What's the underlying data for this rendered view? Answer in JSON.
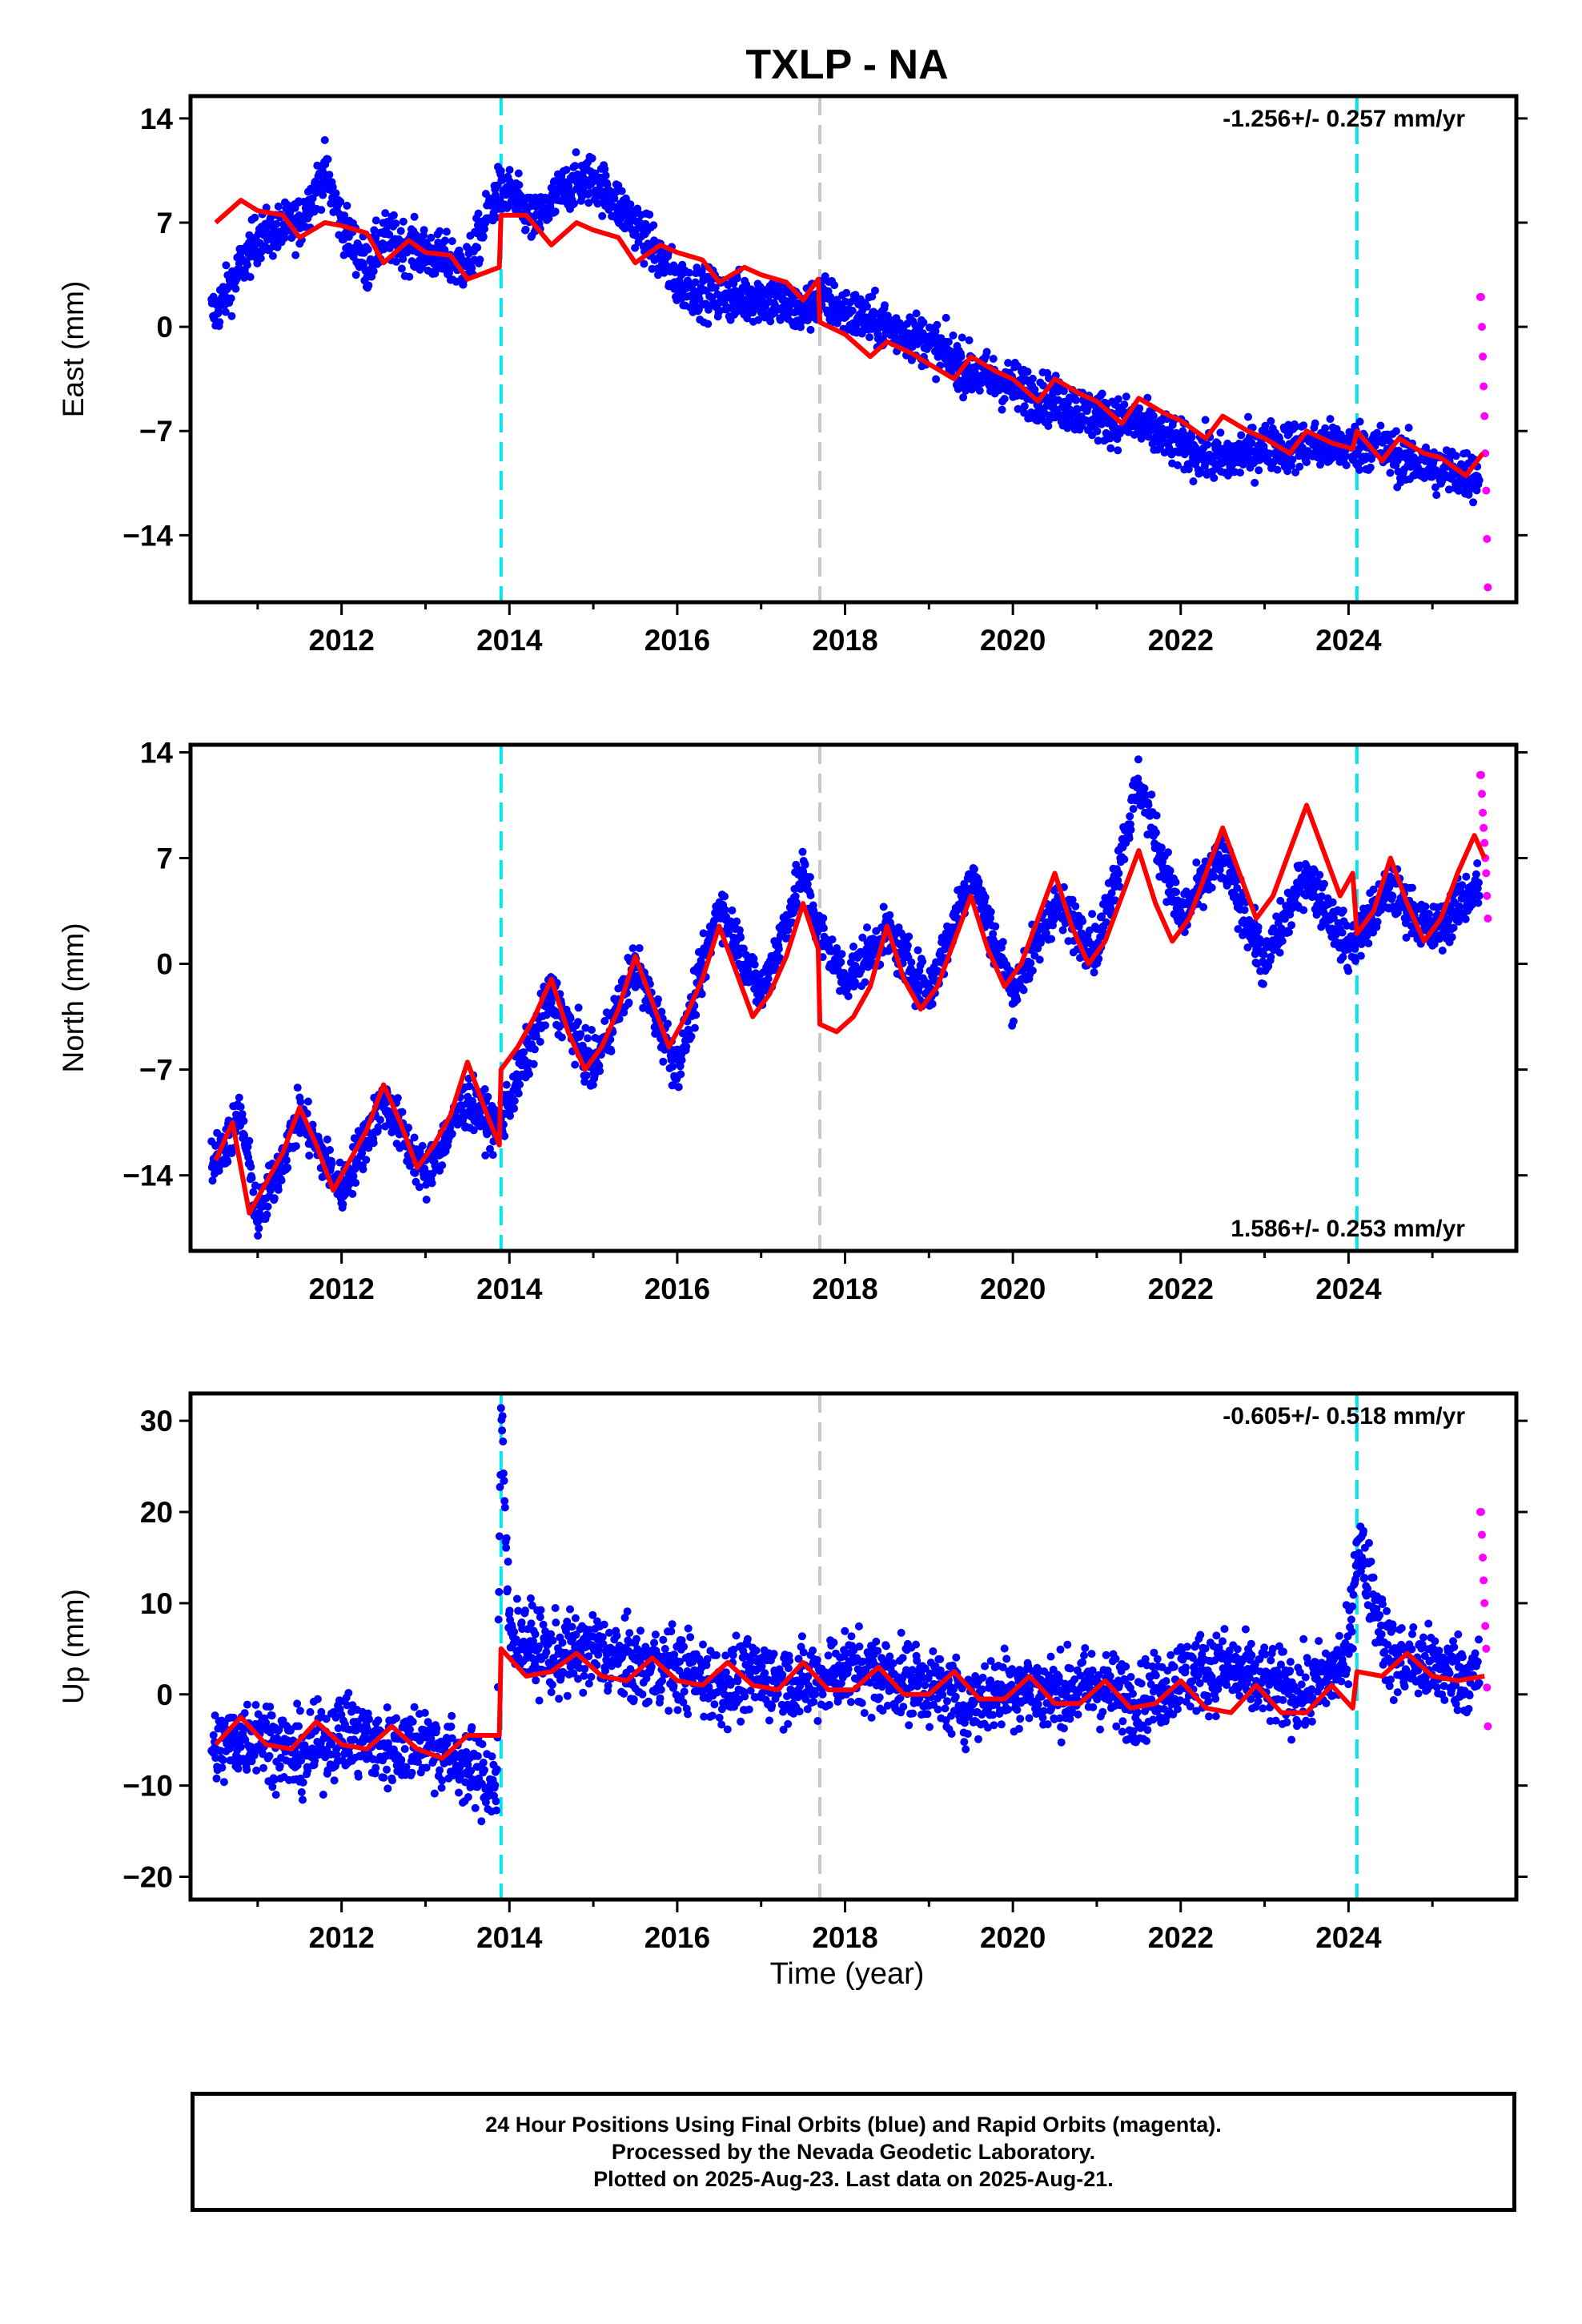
{
  "title": "TXLP - NA",
  "xlabel": "Time (year)",
  "x_ticks": [
    2012,
    2014,
    2016,
    2018,
    2020,
    2022,
    2024
  ],
  "colors": {
    "final_orbits": "#0000ff",
    "rapid_orbits": "#ff00ff",
    "model_fit": "#ff0000",
    "antenna_change": "#00e5ee",
    "event_line": "#c8c8c8"
  },
  "vertical_lines": {
    "antenna_change": [
      2013.9,
      2024.1
    ],
    "event": [
      2017.7
    ]
  },
  "caption": {
    "line1": "24 Hour Positions Using Final Orbits (blue) and Rapid Orbits (magenta).",
    "line2": "Processed by the Nevada Geodetic Laboratory.",
    "line3": "Plotted on 2025-Aug-23. Last data on 2025-Aug-21."
  },
  "chart_data": [
    {
      "type": "scatter",
      "component": "east",
      "ylabel": "East (mm)",
      "rate_label": "-1.256+/- 0.257 mm/yr",
      "xlim": [
        2010.2,
        2026.0
      ],
      "ylim": [
        -18.5,
        15.5
      ],
      "y_ticks": [
        14,
        7,
        0,
        -7,
        -14
      ],
      "y_tick_labels": [
        "14",
        "7",
        "0",
        "−7",
        "−14"
      ],
      "series": [
        {
          "role": "final_orbits",
          "x": [
            2010.5,
            2011.0,
            2011.5,
            2011.8,
            2012.0,
            2012.3,
            2012.5,
            2013.0,
            2013.5,
            2013.85,
            2014.0,
            2014.3,
            2014.7,
            2015.0,
            2015.5,
            2016.0,
            2016.5,
            2017.0,
            2017.5,
            2017.7,
            2018.0,
            2018.5,
            2019.0,
            2019.5,
            2020.0,
            2020.5,
            2021.0,
            2021.5,
            2022.0,
            2022.5,
            2023.0,
            2023.5,
            2024.0,
            2024.3,
            2024.7,
            2025.0,
            2025.5
          ],
          "values": [
            1.0,
            6.0,
            7.0,
            10.5,
            7.0,
            4.0,
            6.0,
            5.0,
            4.0,
            9.0,
            9.0,
            7.0,
            9.5,
            10.0,
            7.0,
            3.0,
            2.0,
            2.0,
            1.0,
            2.0,
            1.0,
            0.0,
            -1.0,
            -3.0,
            -4.0,
            -5.0,
            -6.0,
            -6.5,
            -8.0,
            -9.0,
            -8.0,
            -8.0,
            -8.0,
            -8.0,
            -9.0,
            -9.5,
            -10.0
          ]
        },
        {
          "role": "rapid_orbits",
          "x": [
            2025.58,
            2025.6,
            2025.62,
            2025.64,
            2025.66
          ],
          "values": [
            2.0,
            -2.0,
            -6.0,
            -11.0,
            -17.5
          ]
        }
      ],
      "fit": {
        "x": [
          2010.5,
          2010.8,
          2011.0,
          2011.3,
          2011.5,
          2011.8,
          2012.0,
          2012.3,
          2012.5,
          2012.8,
          2013.0,
          2013.3,
          2013.5,
          2013.88,
          2013.9,
          2014.2,
          2014.5,
          2014.8,
          2015.0,
          2015.3,
          2015.5,
          2015.8,
          2016.0,
          2016.3,
          2016.5,
          2016.8,
          2017.0,
          2017.3,
          2017.5,
          2017.68,
          2017.7,
          2018.0,
          2018.3,
          2018.5,
          2018.8,
          2019.0,
          2019.3,
          2019.5,
          2019.8,
          2020.0,
          2020.3,
          2020.5,
          2020.8,
          2021.0,
          2021.3,
          2021.5,
          2021.8,
          2022.0,
          2022.3,
          2022.5,
          2022.8,
          2023.0,
          2023.3,
          2023.5,
          2023.8,
          2024.05,
          2024.1,
          2024.4,
          2024.6,
          2024.9,
          2025.1,
          2025.4,
          2025.6
        ],
        "values": [
          7.0,
          8.5,
          7.8,
          7.5,
          6.0,
          7.0,
          6.8,
          6.3,
          4.3,
          5.8,
          5.0,
          4.8,
          3.2,
          4.0,
          7.5,
          7.5,
          5.5,
          7.0,
          6.5,
          6.0,
          4.3,
          5.5,
          5.0,
          4.5,
          3.0,
          4.0,
          3.5,
          3.0,
          1.8,
          3.2,
          0.3,
          -0.5,
          -2.0,
          -1.0,
          -1.8,
          -2.5,
          -3.5,
          -2.0,
          -3.0,
          -3.5,
          -5.0,
          -3.5,
          -4.5,
          -5.0,
          -6.5,
          -4.8,
          -5.8,
          -6.3,
          -7.5,
          -6.0,
          -7.0,
          -7.5,
          -8.5,
          -7.0,
          -7.8,
          -8.2,
          -7.0,
          -9.0,
          -7.5,
          -8.5,
          -8.8,
          -10.0,
          -8.5
        ]
      }
    },
    {
      "type": "scatter",
      "component": "north",
      "ylabel": "North (mm)",
      "rate_label": "1.586+/- 0.253 mm/yr",
      "xlim": [
        2010.2,
        2026.0
      ],
      "ylim": [
        -19.0,
        14.5
      ],
      "y_ticks": [
        14,
        7,
        0,
        -7,
        -14
      ],
      "y_tick_labels": [
        "14",
        "7",
        "0",
        "−7",
        "−14"
      ],
      "series": [
        {
          "role": "final_orbits",
          "x": [
            2010.5,
            2010.8,
            2011.0,
            2011.5,
            2012.0,
            2012.5,
            2013.0,
            2013.5,
            2013.85,
            2014.0,
            2014.5,
            2015.0,
            2015.5,
            2016.0,
            2016.5,
            2017.0,
            2017.5,
            2017.7,
            2018.0,
            2018.5,
            2019.0,
            2019.5,
            2020.0,
            2020.5,
            2021.0,
            2021.5,
            2022.0,
            2022.5,
            2023.0,
            2023.5,
            2024.0,
            2024.5,
            2025.0,
            2025.5
          ],
          "values": [
            -13.0,
            -10.0,
            -17.0,
            -10.0,
            -15.0,
            -9.0,
            -14.0,
            -9.0,
            -11.0,
            -9.0,
            -2.0,
            -7.0,
            0.0,
            -7.0,
            4.0,
            -2.0,
            6.0,
            2.0,
            -1.0,
            2.0,
            -2.0,
            6.0,
            -2.0,
            4.0,
            1.0,
            12.0,
            3.0,
            7.0,
            0.0,
            6.0,
            1.0,
            5.0,
            2.0,
            5.0
          ]
        },
        {
          "role": "rapid_orbits",
          "x": [
            2025.58,
            2025.6,
            2025.62,
            2025.64,
            2025.66
          ],
          "values": [
            12.5,
            10.0,
            8.0,
            6.0,
            3.0
          ]
        }
      ],
      "fit": {
        "x": [
          2010.5,
          2010.7,
          2010.9,
          2011.1,
          2011.3,
          2011.5,
          2011.7,
          2011.9,
          2012.1,
          2012.3,
          2012.5,
          2012.7,
          2012.9,
          2013.1,
          2013.3,
          2013.5,
          2013.7,
          2013.88,
          2013.9,
          2014.1,
          2014.3,
          2014.5,
          2014.7,
          2014.9,
          2015.1,
          2015.3,
          2015.5,
          2015.7,
          2015.9,
          2016.1,
          2016.3,
          2016.5,
          2016.7,
          2016.9,
          2017.1,
          2017.3,
          2017.5,
          2017.68,
          2017.7,
          2017.9,
          2018.1,
          2018.3,
          2018.5,
          2018.7,
          2018.9,
          2019.1,
          2019.3,
          2019.5,
          2019.7,
          2019.9,
          2020.1,
          2020.3,
          2020.5,
          2020.7,
          2020.9,
          2021.1,
          2021.3,
          2021.5,
          2021.7,
          2021.9,
          2022.1,
          2022.3,
          2022.5,
          2022.7,
          2022.9,
          2023.1,
          2023.3,
          2023.5,
          2023.7,
          2023.9,
          2024.05,
          2024.1,
          2024.3,
          2024.5,
          2024.7,
          2024.9,
          2025.1,
          2025.3,
          2025.5,
          2025.62
        ],
        "values": [
          -13.0,
          -10.5,
          -16.5,
          -14.5,
          -12.5,
          -9.5,
          -12.0,
          -15.0,
          -13.0,
          -11.0,
          -8.0,
          -10.5,
          -13.5,
          -12.0,
          -10.0,
          -6.5,
          -9.5,
          -12.0,
          -7.0,
          -5.5,
          -3.5,
          -1.0,
          -4.5,
          -7.0,
          -5.5,
          -3.0,
          0.5,
          -2.5,
          -5.5,
          -3.5,
          -1.0,
          2.5,
          -0.5,
          -3.5,
          -2.0,
          0.5,
          4.0,
          1.0,
          -4.0,
          -4.5,
          -3.5,
          -1.5,
          2.5,
          -1.0,
          -3.0,
          -1.5,
          1.5,
          4.5,
          1.0,
          -1.5,
          0.0,
          3.0,
          6.0,
          2.5,
          0.0,
          1.5,
          4.5,
          7.5,
          4.0,
          1.5,
          3.0,
          6.0,
          9.0,
          6.0,
          3.0,
          4.5,
          7.5,
          10.5,
          7.5,
          4.5,
          6.0,
          2.0,
          3.5,
          7.0,
          4.0,
          1.5,
          3.0,
          6.0,
          8.5,
          7.0
        ]
      }
    },
    {
      "type": "scatter",
      "component": "up",
      "ylabel": "Up (mm)",
      "rate_label": "-0.605+/- 0.518 mm/yr",
      "xlim": [
        2010.2,
        2026.0
      ],
      "ylim": [
        -22.5,
        33.0
      ],
      "y_ticks": [
        30,
        20,
        10,
        0,
        -10,
        -20
      ],
      "y_tick_labels": [
        "30",
        "20",
        "10",
        "0",
        "−10",
        "−20"
      ],
      "series": [
        {
          "role": "final_orbits",
          "x": [
            2010.5,
            2011.0,
            2011.5,
            2012.0,
            2012.5,
            2013.0,
            2013.5,
            2013.85,
            2013.9,
            2014.0,
            2014.5,
            2015.0,
            2015.5,
            2016.0,
            2016.5,
            2017.0,
            2017.5,
            2018.0,
            2018.5,
            2019.0,
            2019.5,
            2020.0,
            2020.5,
            2021.0,
            2021.5,
            2022.0,
            2022.5,
            2023.0,
            2023.5,
            2024.0,
            2024.1,
            2024.5,
            2025.0,
            2025.5
          ],
          "values": [
            -6.0,
            -4.0,
            -7.0,
            -4.0,
            -6.0,
            -5.0,
            -8.0,
            -10.0,
            31.0,
            7.0,
            4.0,
            5.0,
            3.0,
            3.0,
            1.0,
            2.0,
            1.0,
            3.0,
            2.0,
            1.0,
            -1.0,
            1.0,
            0.0,
            1.0,
            -1.0,
            2.0,
            3.0,
            1.0,
            0.0,
            4.0,
            17.0,
            4.0,
            3.0,
            2.0
          ]
        },
        {
          "role": "rapid_orbits",
          "x": [
            2025.58,
            2025.6,
            2025.62,
            2025.64,
            2025.66
          ],
          "values": [
            20.0,
            15.0,
            10.0,
            5.0,
            -3.5
          ]
        }
      ],
      "fit": {
        "x": [
          2010.5,
          2010.8,
          2011.1,
          2011.4,
          2011.7,
          2012.0,
          2012.3,
          2012.6,
          2012.9,
          2013.2,
          2013.5,
          2013.88,
          2013.9,
          2014.2,
          2014.5,
          2014.8,
          2015.1,
          2015.4,
          2015.7,
          2016.0,
          2016.3,
          2016.6,
          2016.9,
          2017.2,
          2017.5,
          2017.8,
          2018.1,
          2018.4,
          2018.7,
          2019.0,
          2019.3,
          2019.6,
          2019.9,
          2020.2,
          2020.5,
          2020.8,
          2021.1,
          2021.4,
          2021.7,
          2022.0,
          2022.3,
          2022.6,
          2022.9,
          2023.2,
          2023.5,
          2023.8,
          2024.05,
          2024.1,
          2024.4,
          2024.7,
          2025.0,
          2025.3,
          2025.62
        ],
        "values": [
          -5.5,
          -2.5,
          -5.5,
          -6.0,
          -3.0,
          -5.5,
          -6.0,
          -3.5,
          -6.0,
          -7.0,
          -4.5,
          -4.5,
          5.0,
          2.0,
          2.5,
          4.5,
          2.0,
          1.5,
          4.0,
          1.5,
          1.0,
          3.5,
          1.0,
          0.5,
          3.5,
          0.5,
          0.5,
          3.0,
          0.0,
          0.0,
          2.5,
          -0.5,
          -0.5,
          2.0,
          -1.0,
          -1.0,
          1.5,
          -1.5,
          -1.0,
          1.5,
          -1.5,
          -2.0,
          1.0,
          -2.0,
          -2.0,
          1.0,
          -1.5,
          2.5,
          2.0,
          4.5,
          2.0,
          1.5,
          2.0
        ]
      }
    }
  ]
}
